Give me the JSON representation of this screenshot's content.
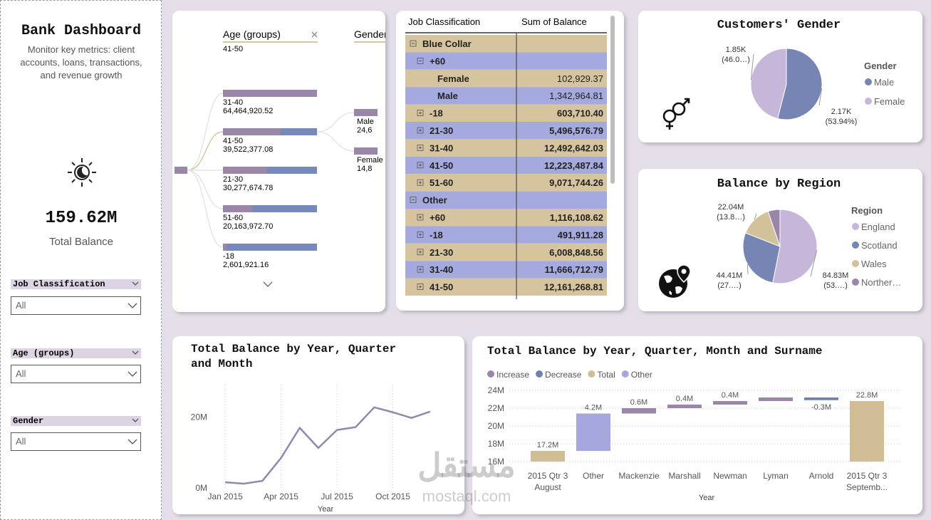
{
  "sidebar": {
    "title": "Bank Dashboard",
    "subtitle": "Monitor key metrics: client accounts, loans, transactions, and revenue growth",
    "kpi_value": "159.62M",
    "kpi_label": "Total Balance",
    "filters": [
      {
        "label": "Job Classification",
        "value": "All"
      },
      {
        "label": "Age (groups)",
        "value": "All"
      },
      {
        "label": "Gender",
        "value": "All"
      }
    ]
  },
  "decomposition": {
    "levels": [
      "Age (groups)",
      "Gender"
    ],
    "selected": "41-50",
    "nodes": [
      {
        "name": "31-40",
        "value": 64464920.52,
        "label": "64,464,920.52"
      },
      {
        "name": "41-50",
        "value": 39522377.08,
        "label": "39,522,377.08"
      },
      {
        "name": "21-30",
        "value": 30277674.78,
        "label": "30,277,674.78"
      },
      {
        "name": "51-60",
        "value": 20163972.7,
        "label": "20,163,972.70"
      },
      {
        "name": "-18",
        "value": 2601921.16,
        "label": "2,601,921.16"
      }
    ],
    "children": [
      {
        "name": "Male",
        "label": "24,6"
      },
      {
        "name": "Female",
        "label": "14,8"
      }
    ]
  },
  "table": {
    "columns": [
      "Job Classification",
      "Sum of Balance"
    ],
    "rows": [
      {
        "level": 0,
        "label": "Blue Collar",
        "expanded": true
      },
      {
        "level": 1,
        "label": "+60",
        "expanded": true
      },
      {
        "level": 2,
        "label": "Female",
        "value": "102,929.37"
      },
      {
        "level": 2,
        "label": "Male",
        "value": "1,342,964.81"
      },
      {
        "level": 1,
        "label": "-18",
        "expanded": false,
        "value": "603,710.40"
      },
      {
        "level": 1,
        "label": "21-30",
        "expanded": false,
        "value": "5,496,576.79"
      },
      {
        "level": 1,
        "label": "31-40",
        "expanded": false,
        "value": "12,492,642.03"
      },
      {
        "level": 1,
        "label": "41-50",
        "expanded": false,
        "value": "12,223,487.84"
      },
      {
        "level": 1,
        "label": "51-60",
        "expanded": false,
        "value": "9,071,744.26"
      },
      {
        "level": 0,
        "label": "Other",
        "expanded": true
      },
      {
        "level": 1,
        "label": "+60",
        "expanded": false,
        "value": "1,116,108.62"
      },
      {
        "level": 1,
        "label": "-18",
        "expanded": false,
        "value": "491,911.28"
      },
      {
        "level": 1,
        "label": "21-30",
        "expanded": false,
        "value": "6,008,848.56"
      },
      {
        "level": 1,
        "label": "31-40",
        "expanded": false,
        "value": "11,666,712.79"
      },
      {
        "level": 1,
        "label": "41-50",
        "expanded": false,
        "value": "12,161,268.81"
      }
    ]
  },
  "chart_data": [
    {
      "type": "pie",
      "title": "Customers' Gender",
      "legend_title": "Gender",
      "legend": "right",
      "categories": [
        "Male",
        "Female"
      ],
      "colors": [
        "#7785b5",
        "#c6b6d9"
      ],
      "values": [
        2.17,
        1.85
      ],
      "value_labels": [
        "2.17K",
        "1.85K"
      ],
      "percent_labels": [
        "(53.94%)",
        "(46.0…)"
      ]
    },
    {
      "type": "pie",
      "title": "Balance by Region",
      "legend_title": "Region",
      "legend": "right",
      "categories": [
        "England",
        "Scotland",
        "Wales",
        "Norther…"
      ],
      "colors": [
        "#c6b6d9",
        "#7785b5",
        "#d3c19c",
        "#9a86a8"
      ],
      "values": [
        84.83,
        44.41,
        22.04,
        8.34
      ],
      "value_labels": [
        "84.83M",
        "44.41M",
        "22.04M",
        null
      ],
      "percent_labels": [
        "(53.…)",
        "(27.…)",
        "(13.8…)",
        null
      ]
    },
    {
      "type": "line",
      "title": "Total Balance by Year, Quarter and Month",
      "x_label": "Year",
      "x": [
        "2015-01",
        "2015-02",
        "2015-03",
        "2015-04",
        "2015-05",
        "2015-06",
        "2015-07",
        "2015-08",
        "2015-09",
        "2015-10",
        "2015-11",
        "2015-12"
      ],
      "values": [
        1.6,
        1.2,
        2.0,
        8.5,
        17.0,
        11.3,
        16.4,
        17.2,
        22.8,
        21.4,
        19.8,
        21.6
      ],
      "color": "#8f89ad",
      "xlim": [
        "2014-12",
        "2016-01"
      ],
      "xticks": [
        {
          "value": "2015-01",
          "label": "Jan 2015"
        },
        {
          "value": "2015-04",
          "label": "Apr 2015"
        },
        {
          "value": "2015-07",
          "label": "Jul 2015"
        },
        {
          "value": "2015-10",
          "label": "Oct 2015"
        }
      ],
      "ylim": [
        0,
        28
      ],
      "yticks": [
        {
          "value": 0,
          "label": "0M"
        },
        {
          "value": 20,
          "label": "20M"
        }
      ],
      "grid": "x"
    },
    {
      "type": "waterfall",
      "title": "Total Balance by Year, Quarter, Month and Surname",
      "x_label": "Year",
      "legend": [
        {
          "name": "Increase",
          "color": "#9a86a8"
        },
        {
          "name": "Decrease",
          "color": "#7080b0"
        },
        {
          "name": "Total",
          "color": "#d0bc95"
        },
        {
          "name": "Other",
          "color": "#a6a7de"
        }
      ],
      "categories": [
        [
          "2015 Qtr 3",
          "August"
        ],
        [
          "Other"
        ],
        [
          "Mackenzie"
        ],
        [
          "Marshall"
        ],
        [
          "Newman"
        ],
        [
          "Lyman"
        ],
        [
          "Arnold"
        ],
        [
          "2015 Qtr 3",
          "Septemb..."
        ]
      ],
      "kinds": [
        "Total",
        "Other",
        "Increase",
        "Increase",
        "Increase",
        "Increase",
        "Decrease",
        "Total"
      ],
      "values": [
        17.2,
        4.2,
        0.6,
        0.4,
        0.4,
        0.4,
        -0.3,
        22.8
      ],
      "value_labels": [
        "17.2M",
        "4.2M",
        "0.6M",
        "0.4M",
        "0.4M",
        "0.4M",
        "-0.3M",
        "22.8M"
      ],
      "ylim": [
        16,
        24
      ],
      "yticks": [
        {
          "value": 16,
          "label": "16M"
        },
        {
          "value": 18,
          "label": "18M"
        },
        {
          "value": 20,
          "label": "20M"
        },
        {
          "value": 22,
          "label": "22M"
        },
        {
          "value": 24,
          "label": "24M"
        }
      ],
      "grid": true
    }
  ],
  "watermark": [
    "مستقل",
    "mostaql.com"
  ]
}
